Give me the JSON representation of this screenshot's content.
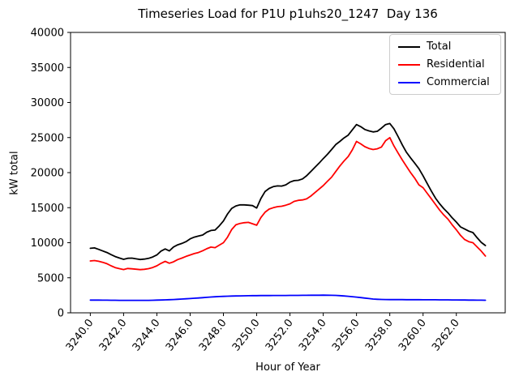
{
  "window": {
    "background": "#ffffff"
  },
  "chart_data": {
    "type": "line",
    "title": "Timeseries Load for P1U p1uhs20_1247  Day 136",
    "xlabel": "Hour of Year",
    "ylabel": "kW total",
    "xlim": [
      3238.8125,
      3264.9375
    ],
    "ylim": [
      0,
      40000
    ],
    "grid": false,
    "legend_position": "upper right",
    "x_tick_labels": [
      "3240.0",
      "3242.0",
      "3244.0",
      "3246.0",
      "3248.0",
      "3250.0",
      "3252.0",
      "3254.0",
      "3256.0",
      "3258.0",
      "3260.0",
      "3262.0"
    ],
    "x_tick_values": [
      3240,
      3242,
      3244,
      3246,
      3248,
      3250,
      3252,
      3254,
      3256,
      3258,
      3260,
      3262
    ],
    "y_tick_labels": [
      "0",
      "5000",
      "10000",
      "15000",
      "20000",
      "25000",
      "30000",
      "35000",
      "40000"
    ],
    "y_tick_values": [
      0,
      5000,
      10000,
      15000,
      20000,
      25000,
      30000,
      35000,
      40000
    ],
    "x_start": 3240.0,
    "x_step": 0.25,
    "series": [
      {
        "name": "Total",
        "color": "#000000",
        "values": [
          9200,
          9260,
          9050,
          8820,
          8600,
          8300,
          8020,
          7820,
          7630,
          7780,
          7800,
          7700,
          7610,
          7660,
          7770,
          7960,
          8260,
          8810,
          9110,
          8830,
          9390,
          9700,
          9900,
          10150,
          10550,
          10800,
          10950,
          11100,
          11500,
          11750,
          11800,
          12400,
          13100,
          14100,
          14900,
          15250,
          15400,
          15400,
          15350,
          15300,
          14950,
          16300,
          17300,
          17750,
          18000,
          18100,
          18080,
          18260,
          18650,
          18850,
          18900,
          19100,
          19550,
          20150,
          20750,
          21350,
          22000,
          22600,
          23300,
          24000,
          24450,
          24950,
          25350,
          26100,
          26850,
          26550,
          26150,
          25950,
          25800,
          25900,
          26350,
          26850,
          27000,
          26250,
          25150,
          23950,
          22900,
          22100,
          21350,
          20550,
          19550,
          18450,
          17350,
          16350,
          15550,
          14850,
          14250,
          13550,
          12950,
          12250,
          11950,
          11650,
          11450,
          10700,
          10050,
          9600
        ]
      },
      {
        "name": "Residential",
        "color": "#ff0000",
        "values": [
          7400,
          7460,
          7350,
          7200,
          7000,
          6700,
          6450,
          6300,
          6170,
          6320,
          6280,
          6220,
          6160,
          6210,
          6300,
          6460,
          6700,
          7060,
          7340,
          7070,
          7270,
          7600,
          7800,
          8050,
          8250,
          8450,
          8600,
          8850,
          9150,
          9380,
          9300,
          9650,
          10000,
          10800,
          11900,
          12550,
          12750,
          12850,
          12900,
          12700,
          12500,
          13600,
          14350,
          14800,
          15000,
          15150,
          15200,
          15350,
          15550,
          15900,
          16050,
          16100,
          16250,
          16650,
          17150,
          17650,
          18150,
          18750,
          19350,
          20150,
          20950,
          21650,
          22300,
          23250,
          24450,
          24100,
          23700,
          23450,
          23300,
          23400,
          23650,
          24550,
          25000,
          23800,
          22800,
          21800,
          20900,
          20000,
          19200,
          18250,
          17850,
          17050,
          16250,
          15450,
          14650,
          13950,
          13350,
          12550,
          11850,
          11050,
          10450,
          10150,
          10000,
          9400,
          8800,
          8100
        ]
      },
      {
        "name": "Commercial",
        "color": "#0000ff",
        "values": [
          1820,
          1815,
          1810,
          1805,
          1800,
          1795,
          1790,
          1785,
          1780,
          1778,
          1776,
          1775,
          1775,
          1778,
          1785,
          1795,
          1810,
          1825,
          1845,
          1870,
          1900,
          1930,
          1965,
          2000,
          2040,
          2080,
          2120,
          2165,
          2210,
          2250,
          2285,
          2320,
          2350,
          2375,
          2395,
          2410,
          2420,
          2430,
          2440,
          2448,
          2455,
          2460,
          2465,
          2468,
          2470,
          2472,
          2475,
          2478,
          2480,
          2485,
          2490,
          2495,
          2500,
          2505,
          2510,
          2512,
          2515,
          2512,
          2500,
          2480,
          2450,
          2410,
          2360,
          2300,
          2240,
          2170,
          2100,
          2030,
          1970,
          1930,
          1905,
          1895,
          1890,
          1886,
          1883,
          1880,
          1878,
          1875,
          1872,
          1870,
          1867,
          1864,
          1861,
          1858,
          1855,
          1850,
          1845,
          1840,
          1835,
          1830,
          1825,
          1820,
          1815,
          1808,
          1800,
          1790
        ]
      }
    ]
  }
}
